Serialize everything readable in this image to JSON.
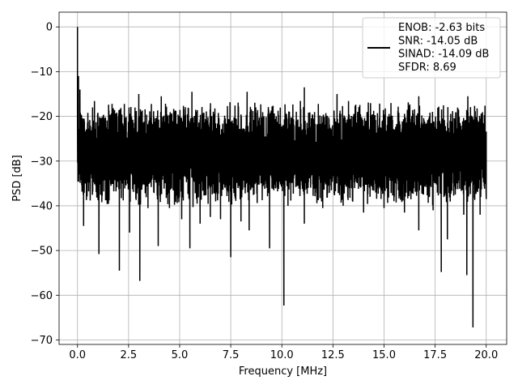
{
  "chart_data": {
    "type": "line",
    "title": "",
    "xlabel": "Frequency [MHz]",
    "ylabel": "PSD [dB]",
    "xlim": [
      -0.9,
      21.0
    ],
    "ylim": [
      -71,
      3.3
    ],
    "xticks": [
      0.0,
      2.5,
      5.0,
      7.5,
      10.0,
      12.5,
      15.0,
      17.5,
      20.0
    ],
    "xtick_labels": [
      "0.0",
      "2.5",
      "5.0",
      "7.5",
      "10.0",
      "12.5",
      "15.0",
      "17.5",
      "20.0"
    ],
    "yticks": [
      0,
      -10,
      -20,
      -30,
      -40,
      -50,
      -60,
      -70
    ],
    "ytick_labels": [
      "0",
      "−10",
      "−20",
      "−30",
      "−40",
      "−50",
      "−60",
      "−70"
    ],
    "grid": true,
    "legend_position": "top-right",
    "legend_entries": [
      "ENOB: -2.63 bits",
      "SNR: -14.05 dB",
      "SINAD: -14.09 dB",
      "SFDR: 8.69"
    ],
    "line_color": "#000000",
    "x_range": [
      0.0,
      20.0
    ],
    "noise_band": {
      "upper_typical": -19,
      "lower_typical": -38,
      "median": -27
    },
    "peaks": [
      {
        "x": 0.0,
        "y": 0.0
      },
      {
        "x": 0.05,
        "y": -11.0
      },
      {
        "x": 0.12,
        "y": -14.0
      },
      {
        "x": 3.0,
        "y": -15.0
      },
      {
        "x": 4.1,
        "y": -15.5
      },
      {
        "x": 5.6,
        "y": -14.5
      },
      {
        "x": 8.3,
        "y": -14.5
      },
      {
        "x": 11.1,
        "y": -13.5
      },
      {
        "x": 12.7,
        "y": -15.0
      },
      {
        "x": 16.7,
        "y": -15.5
      },
      {
        "x": 19.1,
        "y": -15.5
      }
    ],
    "dips": [
      {
        "x": 0.3,
        "y": -44.5
      },
      {
        "x": 1.05,
        "y": -50.8
      },
      {
        "x": 2.05,
        "y": -54.5
      },
      {
        "x": 2.55,
        "y": -46.0
      },
      {
        "x": 3.05,
        "y": -56.8
      },
      {
        "x": 3.45,
        "y": -40.5
      },
      {
        "x": 3.95,
        "y": -49.0
      },
      {
        "x": 4.5,
        "y": -40.5
      },
      {
        "x": 5.1,
        "y": -43.0
      },
      {
        "x": 5.5,
        "y": -49.5
      },
      {
        "x": 6.0,
        "y": -44.0
      },
      {
        "x": 6.5,
        "y": -42.5
      },
      {
        "x": 7.0,
        "y": -43.0
      },
      {
        "x": 7.5,
        "y": -51.5
      },
      {
        "x": 8.0,
        "y": -43.5
      },
      {
        "x": 8.4,
        "y": -45.5
      },
      {
        "x": 9.4,
        "y": -49.5
      },
      {
        "x": 10.1,
        "y": -62.3
      },
      {
        "x": 10.3,
        "y": -40.0
      },
      {
        "x": 11.1,
        "y": -44.0
      },
      {
        "x": 12.0,
        "y": -40.5
      },
      {
        "x": 13.0,
        "y": -40.0
      },
      {
        "x": 14.0,
        "y": -41.5
      },
      {
        "x": 15.0,
        "y": -40.5
      },
      {
        "x": 16.0,
        "y": -41.5
      },
      {
        "x": 16.7,
        "y": -45.5
      },
      {
        "x": 17.4,
        "y": -41.0
      },
      {
        "x": 17.8,
        "y": -54.8
      },
      {
        "x": 18.1,
        "y": -47.5
      },
      {
        "x": 18.9,
        "y": -42.0
      },
      {
        "x": 19.05,
        "y": -55.5
      },
      {
        "x": 19.35,
        "y": -67.2
      },
      {
        "x": 19.7,
        "y": -42.0
      },
      {
        "x": 20.0,
        "y": -38.5
      }
    ]
  }
}
